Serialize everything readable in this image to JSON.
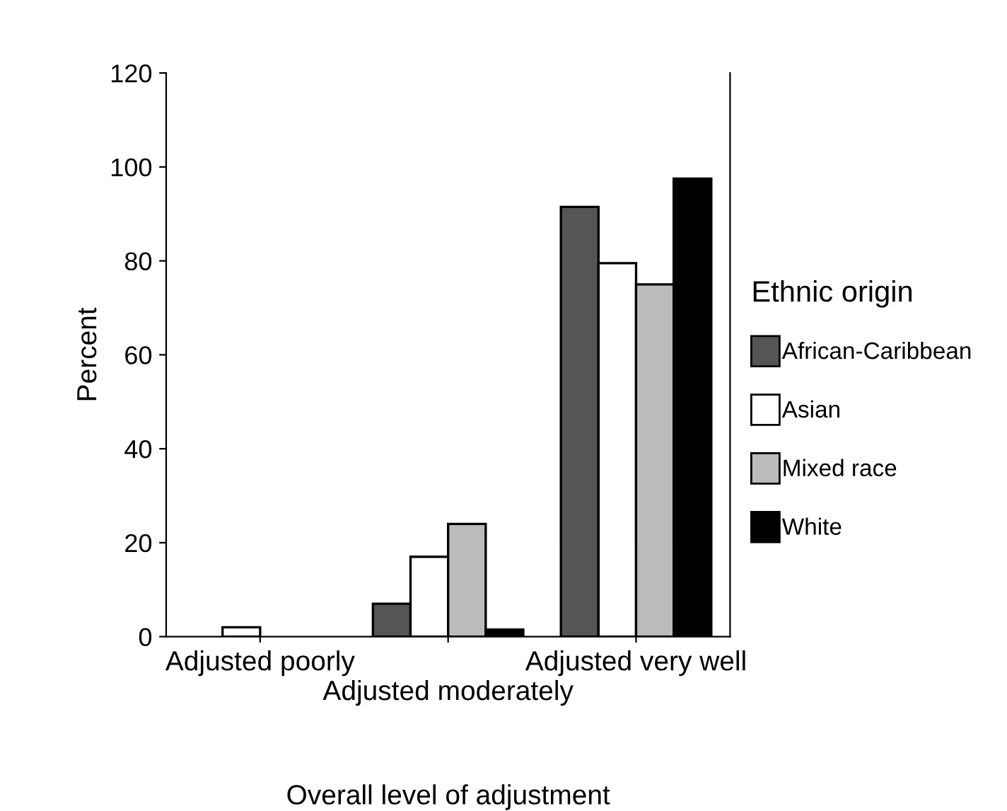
{
  "chart_data": {
    "type": "bar",
    "xlabel": "Overall level of adjustment",
    "ylabel": "Percent",
    "legend_title": "Ethnic origin",
    "legend": "right",
    "categories": [
      "Adjusted poorly",
      "Adjusted moderately",
      "Adjusted very well"
    ],
    "series": [
      {
        "name": "African-Caribbean",
        "color": "#555555",
        "values": [
          null,
          7,
          91.5
        ]
      },
      {
        "name": "Asian",
        "color": "#ffffff",
        "values": [
          2,
          17,
          79.5
        ]
      },
      {
        "name": "Mixed race",
        "color": "#bbbbbb",
        "values": [
          null,
          24,
          75
        ]
      },
      {
        "name": "White",
        "color": "#000000",
        "values": [
          null,
          1.5,
          97.5
        ]
      }
    ],
    "ylim": [
      0,
      120
    ],
    "yticks": [
      0,
      20,
      40,
      60,
      80,
      100,
      120
    ],
    "grid": false
  }
}
